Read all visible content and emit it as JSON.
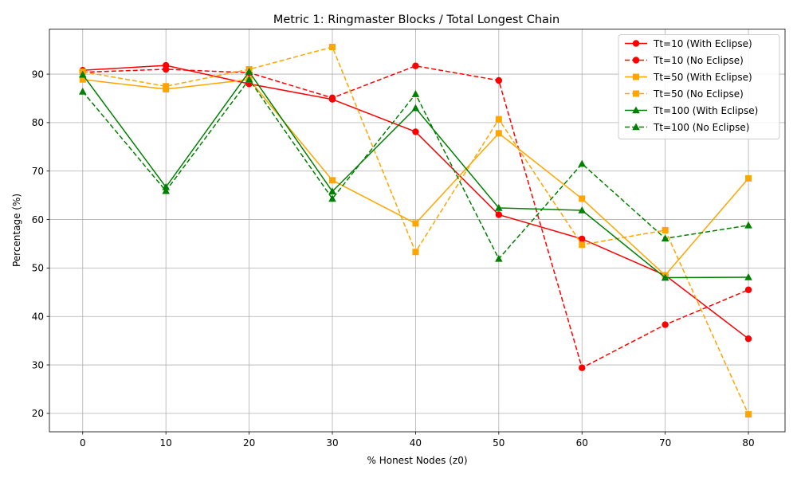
{
  "chart_data": {
    "type": "line",
    "title": "Metric 1: Ringmaster Blocks / Total Longest Chain",
    "xlabel": "% Honest Nodes (z0)",
    "ylabel": "Percentage (%)",
    "x": [
      0,
      10,
      20,
      30,
      40,
      50,
      60,
      70,
      80
    ],
    "xticks": [
      0,
      10,
      20,
      30,
      40,
      50,
      60,
      70,
      80
    ],
    "yticks": [
      20,
      30,
      40,
      50,
      60,
      70,
      80,
      90
    ],
    "xlim": [
      -4,
      84.4
    ],
    "ylim": [
      16.2,
      99.3
    ],
    "grid": true,
    "legend_position": "top-right",
    "series": [
      {
        "name": "Tt=10 (With Eclipse)",
        "color": "#ff0000",
        "dash": "solid",
        "marker": "circle",
        "values": [
          90.8,
          91.8,
          88.0,
          84.8,
          78.1,
          61.0,
          56.0,
          48.5,
          35.4
        ]
      },
      {
        "name": "Tt=10 (No Eclipse)",
        "color": "#ff0000",
        "dash": "dashed",
        "marker": "circle",
        "values": [
          90.4,
          91.0,
          90.3,
          85.1,
          91.7,
          88.7,
          29.4,
          38.3,
          45.5
        ]
      },
      {
        "name": "Tt=50 (With Eclipse)",
        "color": "#ffa500",
        "dash": "solid",
        "marker": "square",
        "values": [
          88.9,
          86.9,
          88.9,
          68.1,
          59.2,
          77.8,
          64.3,
          48.5,
          68.5
        ]
      },
      {
        "name": "Tt=50 (No Eclipse)",
        "color": "#ffa500",
        "dash": "dashed",
        "marker": "square",
        "values": [
          90.5,
          87.5,
          91.0,
          95.6,
          53.3,
          80.7,
          54.8,
          57.8,
          19.8
        ]
      },
      {
        "name": "Tt=100 (With Eclipse)",
        "color": "#008000",
        "dash": "solid",
        "marker": "triangle",
        "values": [
          89.9,
          66.7,
          90.5,
          65.8,
          83.0,
          62.4,
          61.9,
          48.0,
          48.1
        ]
      },
      {
        "name": "Tt=100 (No Eclipse)",
        "color": "#008000",
        "dash": "dashed",
        "marker": "triangle",
        "values": [
          86.4,
          65.9,
          88.9,
          64.3,
          85.9,
          51.9,
          71.5,
          56.1,
          58.8
        ]
      }
    ]
  }
}
